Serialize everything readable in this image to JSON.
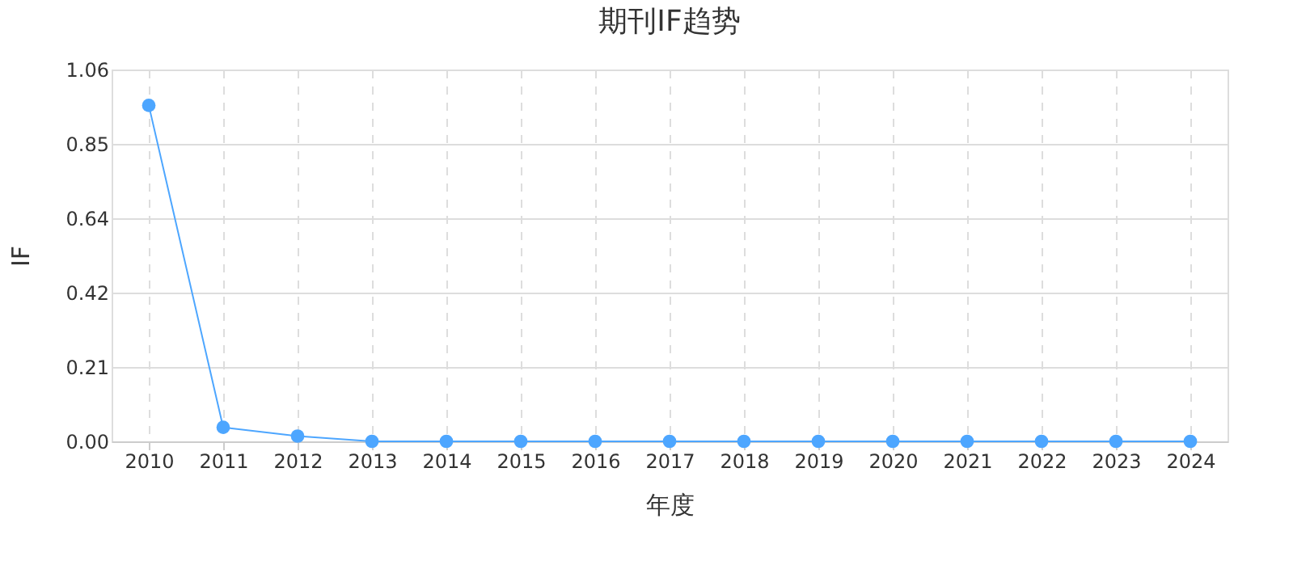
{
  "chart_data": {
    "type": "line",
    "title": "期刊IF趋势",
    "xlabel": "年度",
    "ylabel": "IF",
    "categories": [
      "2010",
      "2011",
      "2012",
      "2013",
      "2014",
      "2015",
      "2016",
      "2017",
      "2018",
      "2019",
      "2020",
      "2021",
      "2022",
      "2023",
      "2024"
    ],
    "series": [
      {
        "color": "#4da6ff",
        "values": [
          0.96,
          0.04,
          0.015,
          0,
          0,
          0,
          0,
          0,
          0,
          0,
          0,
          0,
          0,
          0,
          0
        ]
      }
    ],
    "ylim": [
      0,
      1.0625
    ],
    "yticks": [
      {
        "value": 0,
        "label": "0.00"
      },
      {
        "value": 0.2125,
        "label": "0.21"
      },
      {
        "value": 0.425,
        "label": "0.42"
      },
      {
        "value": 0.6375,
        "label": "0.64"
      },
      {
        "value": 0.85,
        "label": "0.85"
      },
      {
        "value": 1.0625,
        "label": "1.06"
      }
    ],
    "grid": true,
    "marker": "circle",
    "line_style": "solid"
  }
}
